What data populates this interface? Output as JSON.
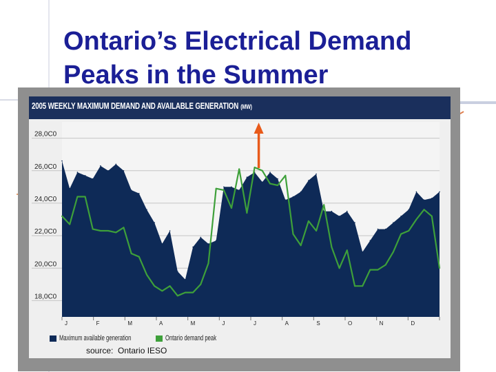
{
  "slide": {
    "title_line1": "Ontario’s Electrical Demand",
    "title_line2": "Peaks in the Summer"
  },
  "chart_data": {
    "type": "area",
    "title": "2005 WEEKLY MAXIMUM DEMAND AND AVAILABLE GENERATION",
    "unit": "(MW)",
    "months": [
      "J",
      "F",
      "M",
      "A",
      "M",
      "J",
      "J",
      "A",
      "S",
      "O",
      "N",
      "D"
    ],
    "ylim": [
      17000,
      29000
    ],
    "yticks": [
      18000,
      20000,
      22000,
      24000,
      26000,
      28000
    ],
    "ytick_labels": [
      "18,0C0",
      "20,0C0",
      "22,0C0",
      "24,0C0",
      "26,0C0",
      "28,0C0"
    ],
    "grid": true,
    "legend_position": "bottom",
    "series": [
      {
        "name": "Maximum available generation",
        "color": "#0e2a57",
        "kind": "area",
        "values": [
          26600,
          24900,
          25900,
          25700,
          25500,
          26300,
          26000,
          26400,
          26000,
          24800,
          24600,
          23600,
          22800,
          21500,
          22300,
          19800,
          19300,
          21300,
          21900,
          21500,
          21700,
          25000,
          25000,
          24800,
          25600,
          25900,
          25300,
          25900,
          25500,
          24200,
          24400,
          24700,
          25400,
          25800,
          23500,
          23500,
          23200,
          23500,
          22800,
          21000,
          21700,
          22400,
          22400,
          22800,
          23200,
          23600,
          24700,
          24200,
          24300,
          24700
        ]
      },
      {
        "name": "Ontario demand peak",
        "color": "#3ea03a",
        "kind": "line",
        "values": [
          23200,
          22700,
          24400,
          24400,
          22400,
          22300,
          22300,
          22200,
          22500,
          20900,
          20700,
          19600,
          18900,
          18600,
          18900,
          18300,
          18500,
          18500,
          19000,
          20300,
          24900,
          24800,
          23700,
          26100,
          23400,
          26200,
          26000,
          25200,
          25100,
          25700,
          22100,
          21400,
          22900,
          22300,
          23900,
          21300,
          20000,
          21100,
          18900,
          18900,
          19900,
          19900,
          20200,
          21000,
          22100,
          22300,
          23000,
          23600,
          23200,
          20000
        ]
      }
    ]
  },
  "annotation": {
    "arrow_color": "#e85a1a",
    "meaning": "peak"
  },
  "source": "source:  Ontario IESO"
}
